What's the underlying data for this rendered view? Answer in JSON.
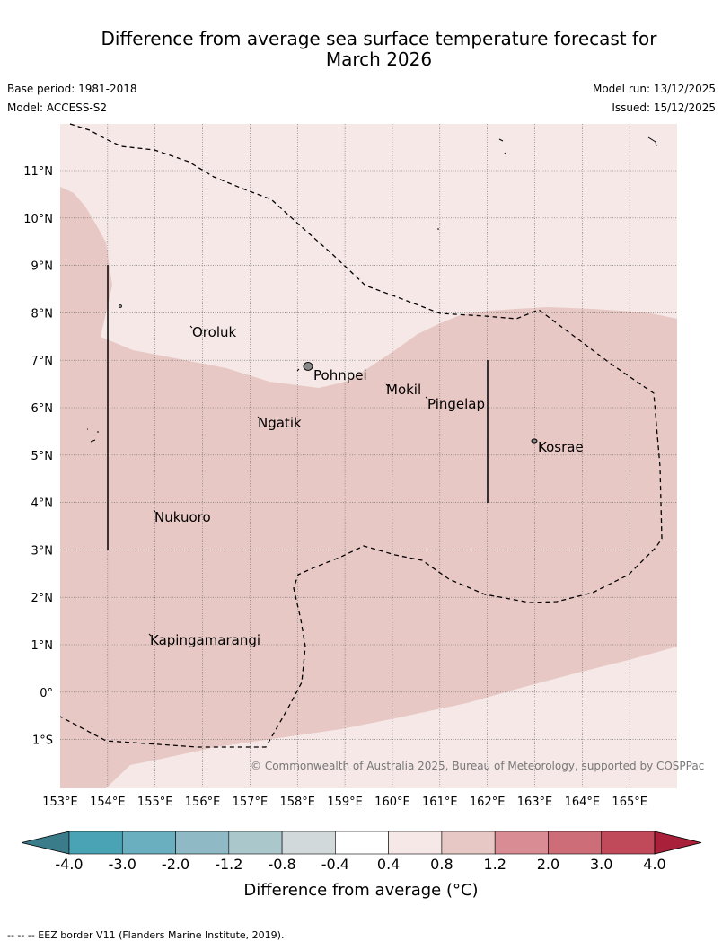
{
  "title": {
    "line1": "Difference from average sea surface temperature forecast for",
    "line2": "March 2026"
  },
  "meta": {
    "base_period": "Base period: 1981-2018",
    "model": "Model: ACCESS-S2",
    "model_run": "Model run: 13/12/2025",
    "issued": "Issued: 15/12/2025"
  },
  "map": {
    "longitude_labels": [
      "153°E",
      "154°E",
      "155°E",
      "156°E",
      "157°E",
      "158°E",
      "159°E",
      "160°E",
      "161°E",
      "162°E",
      "163°E",
      "164°E",
      "165°E"
    ],
    "latitude_labels": [
      "11°N",
      "10°N",
      "9°N",
      "8°N",
      "7°N",
      "6°N",
      "5°N",
      "4°N",
      "3°N",
      "2°N",
      "1°N",
      "0°",
      "1°S"
    ],
    "places": [
      {
        "name": "Oroluk"
      },
      {
        "name": "Pohnpei"
      },
      {
        "name": "Mokil"
      },
      {
        "name": "Pingelap"
      },
      {
        "name": "Ngatik"
      },
      {
        "name": "Kosrae"
      },
      {
        "name": "Nukuoro"
      },
      {
        "name": "Kapingamarangi"
      }
    ],
    "copyright": "© Commonwealth of Australia 2025, Bureau of Meteorology, supported by COSPPac",
    "colors": {
      "band_04_08": "#f5e8e7",
      "band_08_12": "#e8c8c4",
      "grid": "#666666"
    }
  },
  "colorbar": {
    "tick_labels": [
      "-4.0",
      "-3.0",
      "-2.0",
      "-1.2",
      "-0.8",
      "-0.4",
      "0.4",
      "0.8",
      "1.2",
      "2.0",
      "3.0",
      "4.0"
    ],
    "colors": [
      "#3b7c8a",
      "#4aa3b4",
      "#6aafbf",
      "#8fbac5",
      "#aac8cc",
      "#d2d9da",
      "#ffffff",
      "#f5e8e7",
      "#e8c8c4",
      "#d98c94",
      "#cc6d78",
      "#c04a5a",
      "#a8203a"
    ],
    "label": "Difference from average (°C)"
  },
  "footer": "-- -- -- EEZ border V11 (Flanders Marine Institute, 2019)."
}
